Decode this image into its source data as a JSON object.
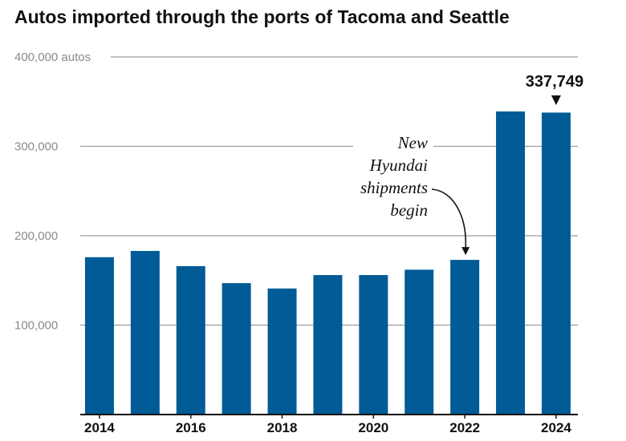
{
  "title": "Autos imported through the ports of Tacoma and Seattle",
  "colors": {
    "bar": "#005b96",
    "grid": "#9e9e9e",
    "axis": "#111111"
  },
  "chart_data": {
    "type": "bar",
    "title": "Autos imported through the ports of Tacoma and Seattle",
    "categories": [
      "2014",
      "2015",
      "2016",
      "2017",
      "2018",
      "2019",
      "2020",
      "2021",
      "2022",
      "2023",
      "2024"
    ],
    "values": [
      176000,
      183000,
      166000,
      147000,
      141000,
      156000,
      156000,
      162000,
      173000,
      339000,
      337749
    ],
    "ylim": [
      0,
      400000
    ],
    "yticks": [
      {
        "value": 100000,
        "label": "100,000"
      },
      {
        "value": 200000,
        "label": "200,000"
      },
      {
        "value": 300000,
        "label": "300,000"
      },
      {
        "value": 400000,
        "label": "400,000 autos"
      }
    ],
    "xtick_labels": [
      "2014",
      "2016",
      "2018",
      "2020",
      "2022",
      "2024"
    ],
    "grid": true,
    "callout": {
      "category": "2024",
      "label": "337,749"
    },
    "annotation": {
      "category": "2022",
      "lines": [
        "New",
        "Hyundai",
        "shipments",
        "begin"
      ]
    }
  }
}
